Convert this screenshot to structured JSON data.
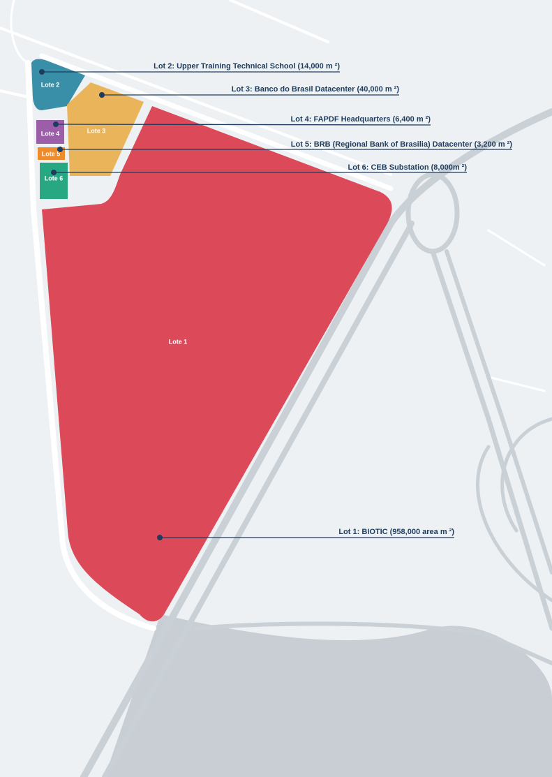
{
  "lots": [
    {
      "label": "Lote 1",
      "callout": "Lot 1: BIOTIC (958,000 area m ²)"
    },
    {
      "label": "Lote 2",
      "callout": "Lot 2: Upper Training Technical School (14,000 m ²)"
    },
    {
      "label": "Lote 3",
      "callout": "Lot 3: Banco do Brasil Datacenter (40,000 m ²)"
    },
    {
      "label": "Lote 4",
      "callout": "Lot 4: FAPDF Headquarters (6,400 m ²)"
    },
    {
      "label": "Lote 5",
      "callout": "Lot 5: BRB (Regional Bank of Brasilia) Datacenter (3,200 m ²)"
    },
    {
      "label": "Lote 6",
      "callout": "Lot 6: CEB Substation (8,000m ²)"
    }
  ]
}
